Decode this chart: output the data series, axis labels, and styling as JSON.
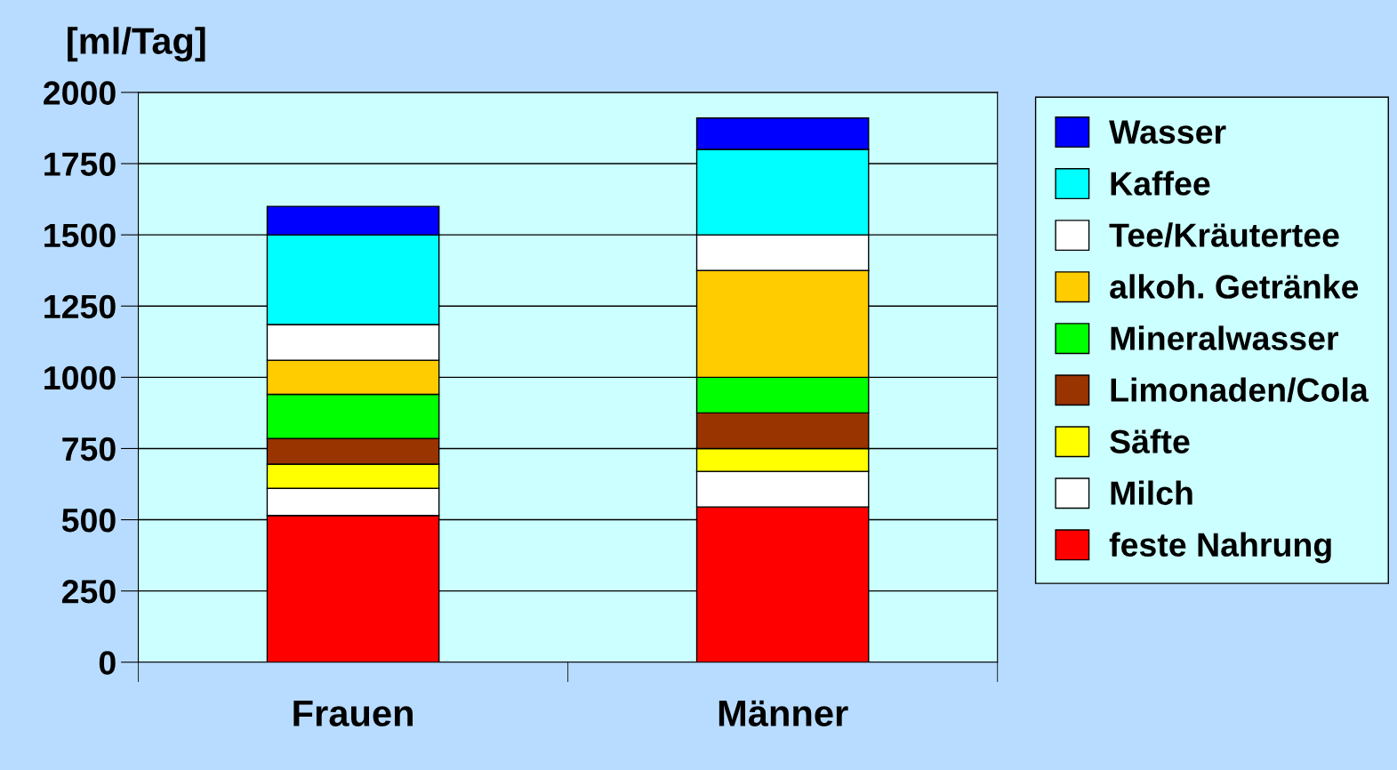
{
  "chart_data": {
    "type": "bar",
    "stacked": true,
    "ylabel": "[ml/Tag]",
    "categories": [
      "Frauen",
      "Männer"
    ],
    "series": [
      {
        "name": "feste Nahrung",
        "color": "#ff0000",
        "values": [
          515,
          545
        ]
      },
      {
        "name": "Milch",
        "color": "#ffffff",
        "values": [
          95,
          125
        ]
      },
      {
        "name": "Säfte",
        "color": "#ffff00",
        "values": [
          85,
          80
        ]
      },
      {
        "name": "Limonaden/Cola",
        "color": "#993300",
        "values": [
          90,
          125
        ]
      },
      {
        "name": "Mineralwasser",
        "color": "#00ff00",
        "values": [
          155,
          125
        ]
      },
      {
        "name": "alkoh. Getränke",
        "color": "#ffcc00",
        "values": [
          120,
          375
        ]
      },
      {
        "name": "Tee/Kräutertee",
        "color": "#ffffff",
        "values": [
          125,
          125
        ]
      },
      {
        "name": "Kaffee",
        "color": "#00ffff",
        "values": [
          315,
          300
        ]
      },
      {
        "name": "Wasser",
        "color": "#0000ff",
        "values": [
          100,
          110
        ]
      }
    ],
    "ylim": [
      0,
      2000
    ],
    "yticks": [
      0,
      250,
      500,
      750,
      1000,
      1250,
      1500,
      1750,
      2000
    ],
    "grid": "y",
    "legend": "right"
  }
}
